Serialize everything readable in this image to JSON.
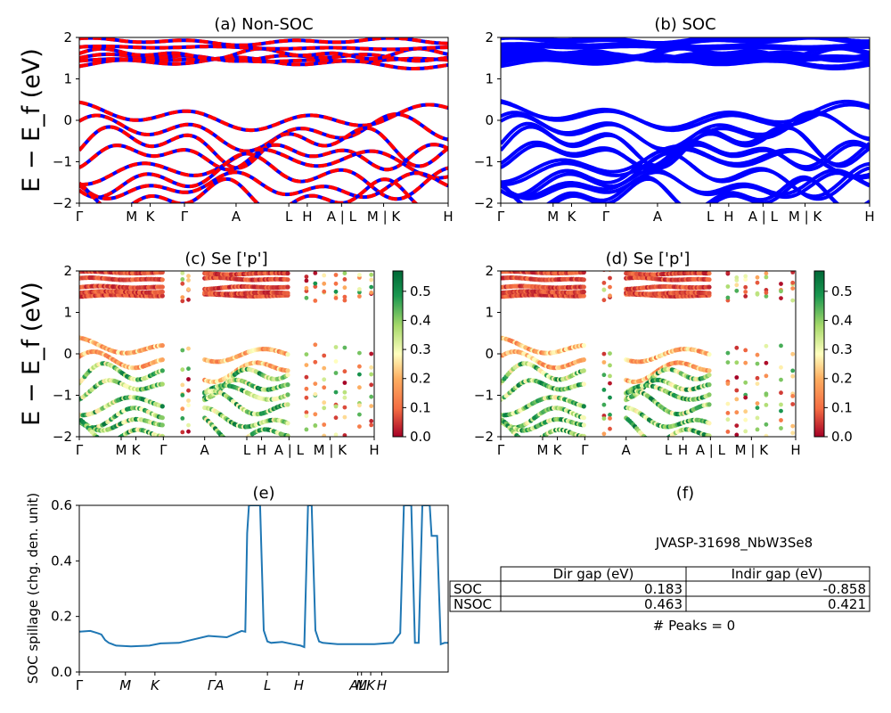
{
  "panels": {
    "a": {
      "title": "(a) Non-SOC"
    },
    "b": {
      "title": "(b) SOC"
    },
    "c": {
      "title": "(c)  Se ['p']"
    },
    "d": {
      "title": "(d) Se ['p']"
    },
    "e": {
      "title": "(e)"
    },
    "f": {
      "title": "(f)"
    }
  },
  "band_ylabel": "E − E_f (eV)",
  "band_kpath_labels": [
    "Γ",
    "M",
    "K",
    "Γ",
    "A",
    "L",
    "H",
    "A | L",
    "M | K",
    "H"
  ],
  "proj_kpath_labels": [
    "Γ",
    "M",
    "K",
    "Γ",
    "A",
    "L",
    "H",
    "A | L",
    "M | K",
    "H"
  ],
  "band_yticks": [
    "2",
    "1",
    "0",
    "−1",
    "−2"
  ],
  "colorbar_ticks": [
    "0.5",
    "0.4",
    "0.3",
    "0.2",
    "0.1",
    "0.0"
  ],
  "spillage": {
    "ylabel": "SOC spillage (chg. den. unit)",
    "yticks": [
      "0.6",
      "0.4",
      "0.2",
      "0.0"
    ],
    "xticks": [
      "Γ",
      "M",
      "K",
      "ΓA",
      "L",
      "H",
      "AL",
      "M",
      "K",
      "H"
    ]
  },
  "info_table": {
    "material": "JVASP-31698_NbW3Se8",
    "headers": [
      "Dir gap (eV)",
      "Indir gap (eV)"
    ],
    "rows": [
      {
        "label": "SOC",
        "dir": "0.183",
        "indir": "-0.858"
      },
      {
        "label": "NSOC",
        "dir": "0.463",
        "indir": "0.421"
      }
    ],
    "peaks": "# Peaks = 0"
  },
  "colors": {
    "nonsoc_a": "#ff0000",
    "nonsoc_b": "#0000ff",
    "soc": "#0000ff",
    "spillage": "#1f77b4"
  },
  "chart_data": [
    {
      "type": "line",
      "panel": "a",
      "ylim": [
        -2,
        2
      ]
    },
    {
      "type": "line",
      "panel": "b",
      "ylim": [
        -2,
        2
      ]
    },
    {
      "type": "scatter",
      "panel": "c",
      "ylim": [
        -2,
        2
      ],
      "colorbar_range": [
        0,
        0.57
      ]
    },
    {
      "type": "scatter",
      "panel": "d",
      "ylim": [
        -2,
        2
      ],
      "colorbar_range": [
        0,
        0.57
      ]
    },
    {
      "type": "line",
      "panel": "e",
      "ylabel": "SOC spillage (chg. den. unit)",
      "ylim": [
        0,
        0.6
      ],
      "x": [
        0,
        3,
        5,
        6,
        7,
        8,
        10,
        14,
        19,
        22,
        27,
        35,
        40,
        44,
        45,
        45.5,
        46,
        48,
        49,
        50,
        51,
        52,
        55,
        58,
        60,
        61,
        62,
        63,
        64,
        65,
        66,
        70,
        75,
        80,
        85,
        87,
        88,
        88.5,
        89,
        90,
        91,
        92,
        93,
        94,
        95,
        95.5,
        96,
        97,
        98,
        99,
        100
      ],
      "values": [
        0.145,
        0.148,
        0.14,
        0.135,
        0.115,
        0.105,
        0.095,
        0.092,
        0.095,
        0.103,
        0.105,
        0.13,
        0.125,
        0.148,
        0.145,
        0.5,
        0.6,
        0.6,
        0.6,
        0.15,
        0.11,
        0.105,
        0.108,
        0.1,
        0.095,
        0.09,
        0.6,
        0.6,
        0.15,
        0.11,
        0.105,
        0.1,
        0.1,
        0.1,
        0.105,
        0.14,
        0.6,
        0.6,
        0.6,
        0.6,
        0.105,
        0.105,
        0.6,
        0.6,
        0.6,
        0.49,
        0.49,
        0.49,
        0.1,
        0.105,
        0.105
      ]
    }
  ]
}
